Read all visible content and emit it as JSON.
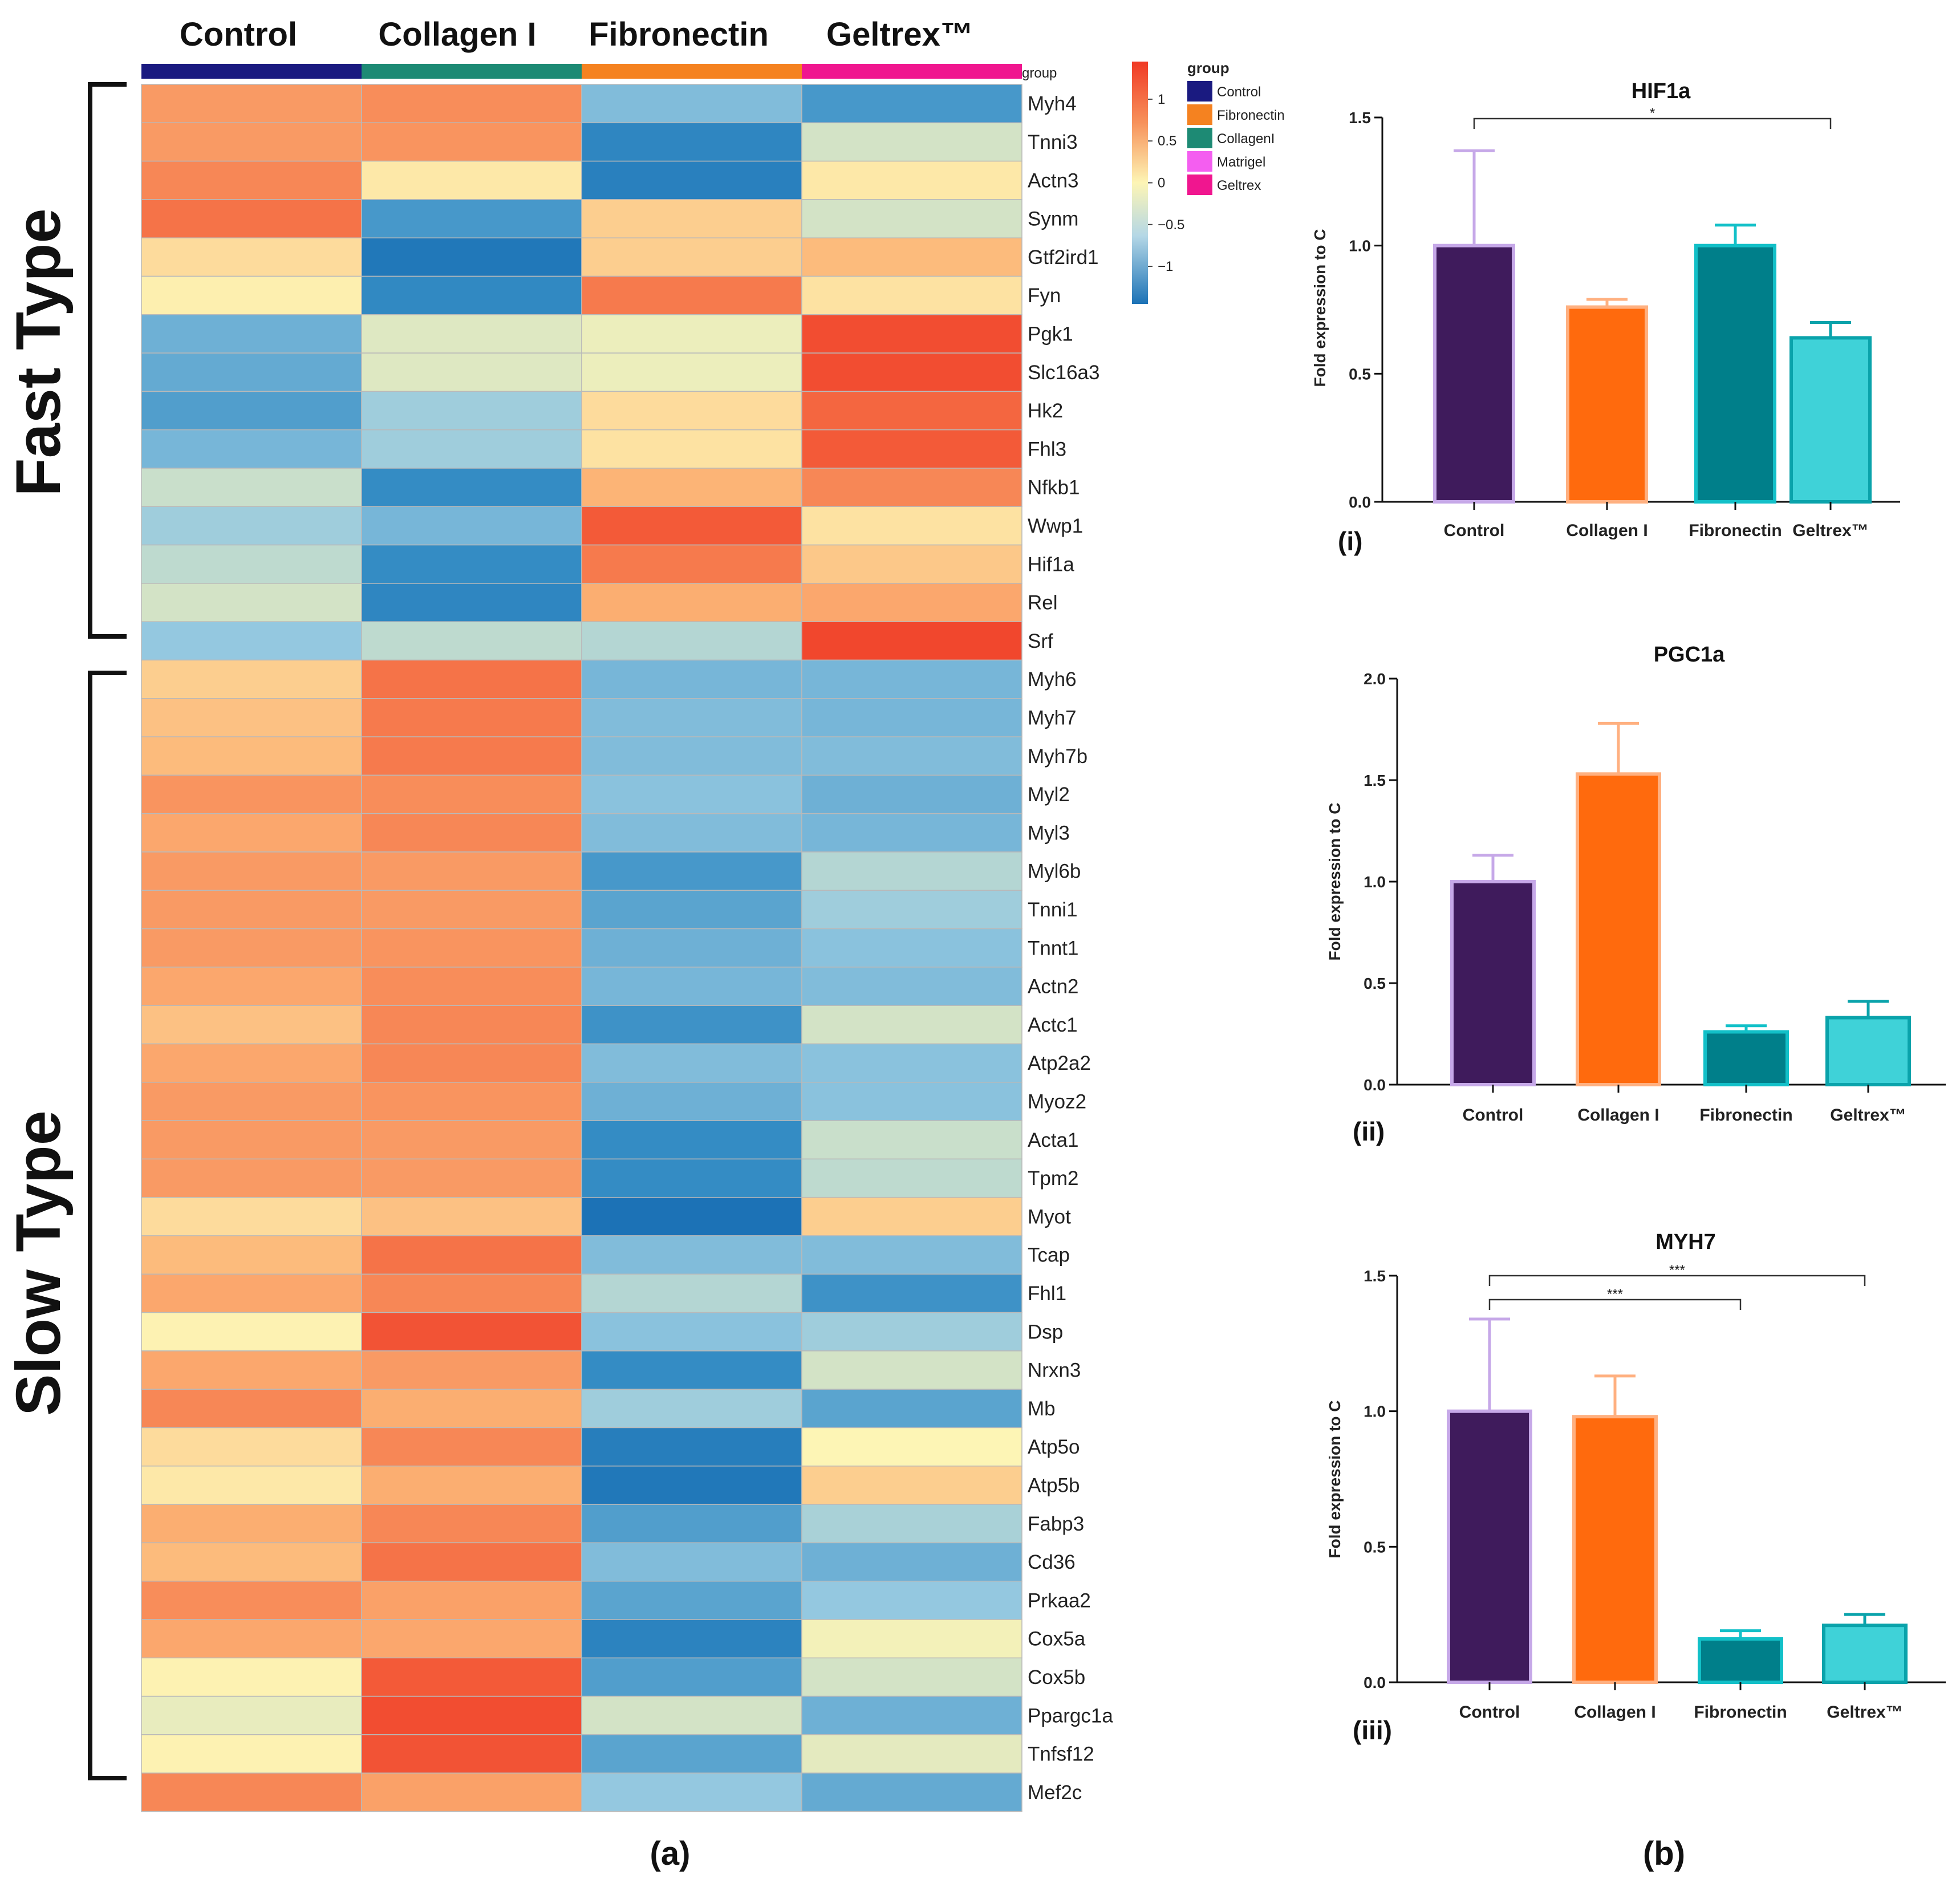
{
  "heatmap": {
    "columns": [
      "Control",
      "Collagen I",
      "Fibronectin",
      "Geltrex™"
    ],
    "group_colors": [
      "#1a1a80",
      "#1d8a74",
      "#f58220",
      "#f0168f"
    ],
    "group_label": "group",
    "fast_label": "Fast Type",
    "slow_label": "Slow Type",
    "scale": {
      "ticks": [
        {
          "label": "1",
          "value": 1
        },
        {
          "label": "0.5",
          "value": 0.5
        },
        {
          "label": "0",
          "value": 0
        },
        {
          "label": "−0.5",
          "value": -0.5
        },
        {
          "label": "−1",
          "value": -1
        }
      ],
      "min": -1.45,
      "max": 1.45
    },
    "legend": {
      "title": "group",
      "items": [
        {
          "label": "Control",
          "color": "#1a1a80"
        },
        {
          "label": "Fibronectin",
          "color": "#f58220"
        },
        {
          "label": "CollagenI",
          "color": "#1d8a74"
        },
        {
          "label": "Matrigel",
          "color": "#f45ef0"
        },
        {
          "label": "Geltrex",
          "color": "#f0168f"
        }
      ]
    },
    "rows": [
      {
        "gene": "Myh4",
        "values": [
          0.7,
          0.8,
          -0.6,
          -0.9
        ]
      },
      {
        "gene": "Tnni3",
        "values": [
          0.7,
          0.75,
          -1.1,
          -0.2
        ]
      },
      {
        "gene": "Actn3",
        "values": [
          0.85,
          0.1,
          -1.2,
          0.1
        ]
      },
      {
        "gene": "Synm",
        "values": [
          1.0,
          -0.9,
          0.3,
          -0.2
        ]
      },
      {
        "gene": "Gtf2ird1",
        "values": [
          0.2,
          -1.35,
          0.3,
          0.45
        ]
      },
      {
        "gene": "Fyn",
        "values": [
          0.05,
          -1.05,
          0.95,
          0.15
        ]
      },
      {
        "gene": "Pgk1",
        "values": [
          -0.7,
          -0.15,
          -0.08,
          1.3
        ]
      },
      {
        "gene": "Slc16a3",
        "values": [
          -0.75,
          -0.15,
          -0.08,
          1.3
        ]
      },
      {
        "gene": "Hk2",
        "values": [
          -0.85,
          -0.45,
          0.2,
          1.1
        ]
      },
      {
        "gene": "Fhl3",
        "values": [
          -0.65,
          -0.45,
          0.15,
          1.2
        ]
      },
      {
        "gene": "Nfkb1",
        "values": [
          -0.25,
          -1.0,
          0.5,
          0.85
        ]
      },
      {
        "gene": "Wwp1",
        "values": [
          -0.45,
          -0.65,
          1.2,
          0.15
        ]
      },
      {
        "gene": "Hif1a",
        "values": [
          -0.3,
          -1.0,
          0.95,
          0.35
        ]
      },
      {
        "gene": "Rel",
        "values": [
          -0.2,
          -1.1,
          0.55,
          0.6
        ]
      },
      {
        "gene": "Srf",
        "values": [
          -0.5,
          -0.3,
          -0.35,
          1.35
        ]
      },
      {
        "gene": "Myh6",
        "values": [
          0.3,
          1.0,
          -0.65,
          -0.65
        ]
      },
      {
        "gene": "Myh7",
        "values": [
          0.4,
          0.95,
          -0.6,
          -0.65
        ]
      },
      {
        "gene": "Myh7b",
        "values": [
          0.45,
          0.95,
          -0.6,
          -0.6
        ]
      },
      {
        "gene": "Myl2",
        "values": [
          0.75,
          0.8,
          -0.55,
          -0.7
        ]
      },
      {
        "gene": "Myl3",
        "values": [
          0.6,
          0.85,
          -0.6,
          -0.65
        ]
      },
      {
        "gene": "Myl6b",
        "values": [
          0.7,
          0.7,
          -0.9,
          -0.35
        ]
      },
      {
        "gene": "Tnni1",
        "values": [
          0.7,
          0.7,
          -0.8,
          -0.45
        ]
      },
      {
        "gene": "Tnnt1",
        "values": [
          0.7,
          0.75,
          -0.7,
          -0.55
        ]
      },
      {
        "gene": "Actn2",
        "values": [
          0.6,
          0.8,
          -0.65,
          -0.6
        ]
      },
      {
        "gene": "Actc1",
        "values": [
          0.4,
          0.85,
          -0.95,
          -0.2
        ]
      },
      {
        "gene": "Atp2a2",
        "values": [
          0.6,
          0.85,
          -0.6,
          -0.55
        ]
      },
      {
        "gene": "Myoz2",
        "values": [
          0.7,
          0.75,
          -0.7,
          -0.55
        ]
      },
      {
        "gene": "Acta1",
        "values": [
          0.7,
          0.7,
          -1.0,
          -0.25
        ]
      },
      {
        "gene": "Tpm2",
        "values": [
          0.7,
          0.7,
          -1.0,
          -0.3
        ]
      },
      {
        "gene": "Myot",
        "values": [
          0.2,
          0.4,
          -1.45,
          0.3
        ]
      },
      {
        "gene": "Tcap",
        "values": [
          0.45,
          1.0,
          -0.6,
          -0.6
        ]
      },
      {
        "gene": "Fhl1",
        "values": [
          0.6,
          0.85,
          -0.35,
          -0.95
        ]
      },
      {
        "gene": "Dsp",
        "values": [
          0.02,
          1.25,
          -0.55,
          -0.45
        ]
      },
      {
        "gene": "Nrxn3",
        "values": [
          0.6,
          0.7,
          -1.0,
          -0.2
        ]
      },
      {
        "gene": "Mb",
        "values": [
          0.85,
          0.55,
          -0.45,
          -0.8
        ]
      },
      {
        "gene": "Atp5o",
        "values": [
          0.2,
          0.85,
          -1.25,
          0.0
        ]
      },
      {
        "gene": "Atp5b",
        "values": [
          0.1,
          0.55,
          -1.35,
          0.3
        ]
      },
      {
        "gene": "Fabp3",
        "values": [
          0.55,
          0.85,
          -0.85,
          -0.4
        ]
      },
      {
        "gene": "Cd36",
        "values": [
          0.45,
          1.0,
          -0.6,
          -0.7
        ]
      },
      {
        "gene": "Prkaa2",
        "values": [
          0.8,
          0.65,
          -0.8,
          -0.5
        ]
      },
      {
        "gene": "Cox5a",
        "values": [
          0.6,
          0.6,
          -1.15,
          -0.05
        ]
      },
      {
        "gene": "Cox5b",
        "values": [
          0.02,
          1.2,
          -0.85,
          -0.2
        ]
      },
      {
        "gene": "Ppargc1a",
        "values": [
          -0.1,
          1.3,
          -0.2,
          -0.7
        ]
      },
      {
        "gene": "Tnfsf12",
        "values": [
          0.02,
          1.25,
          -0.8,
          -0.12
        ]
      },
      {
        "gene": "Mef2c",
        "values": [
          0.85,
          0.65,
          -0.5,
          -0.75
        ]
      }
    ]
  },
  "chart_data": [
    {
      "type": "bar",
      "title": "HIF1a",
      "panel": "(i)",
      "ylabel": "Fold expression to C",
      "categories": [
        "Control",
        "Collagen I",
        "Fibronectin",
        "Geltrex™"
      ],
      "values": [
        1.0,
        0.76,
        1.0,
        0.64
      ],
      "errors": [
        0.37,
        0.03,
        0.08,
        0.06
      ],
      "colors": [
        "#3f1b5c",
        "#ff6a0d",
        "#007f8a",
        "#3fd2d8"
      ],
      "edge_colors": [
        "#c6a8e8",
        "#ffb080",
        "#12c0c8",
        "#0aa3ab"
      ],
      "ylim": [
        0,
        1.5
      ],
      "yticks": [
        "0.0",
        "0.5",
        "1.0",
        "1.5"
      ],
      "significance": [
        {
          "from": 0,
          "to": 3,
          "label": "*"
        }
      ]
    },
    {
      "type": "bar",
      "title": "PGC1a",
      "panel": "(ii)",
      "ylabel": "Fold expression to C",
      "categories": [
        "Control",
        "Collagen I",
        "Fibronectin",
        "Geltrex™"
      ],
      "values": [
        1.0,
        1.53,
        0.26,
        0.33
      ],
      "errors": [
        0.13,
        0.25,
        0.03,
        0.08
      ],
      "colors": [
        "#3f1b5c",
        "#ff6a0d",
        "#007f8a",
        "#3fd2d8"
      ],
      "edge_colors": [
        "#c6a8e8",
        "#ffb080",
        "#12c0c8",
        "#0aa3ab"
      ],
      "ylim": [
        0,
        2.0
      ],
      "yticks": [
        "0.0",
        "0.5",
        "1.0",
        "1.5",
        "2.0"
      ],
      "significance": []
    },
    {
      "type": "bar",
      "title": "MYH7",
      "panel": "(iii)",
      "ylabel": "Fold expression to C",
      "categories": [
        "Control",
        "Collagen I",
        "Fibronectin",
        "Geltrex™"
      ],
      "values": [
        1.0,
        0.98,
        0.16,
        0.21
      ],
      "errors": [
        0.34,
        0.15,
        0.03,
        0.04
      ],
      "colors": [
        "#3f1b5c",
        "#ff6a0d",
        "#007f8a",
        "#3fd2d8"
      ],
      "edge_colors": [
        "#c6a8e8",
        "#ffb080",
        "#12c0c8",
        "#0aa3ab"
      ],
      "ylim": [
        0,
        1.5
      ],
      "yticks": [
        "0.0",
        "0.5",
        "1.0",
        "1.5"
      ],
      "significance": [
        {
          "from": 0,
          "to": 3,
          "label": "***"
        },
        {
          "from": 0,
          "to": 2,
          "label": "***"
        }
      ]
    }
  ],
  "captions": {
    "a": "(a)",
    "b": "(b)"
  }
}
